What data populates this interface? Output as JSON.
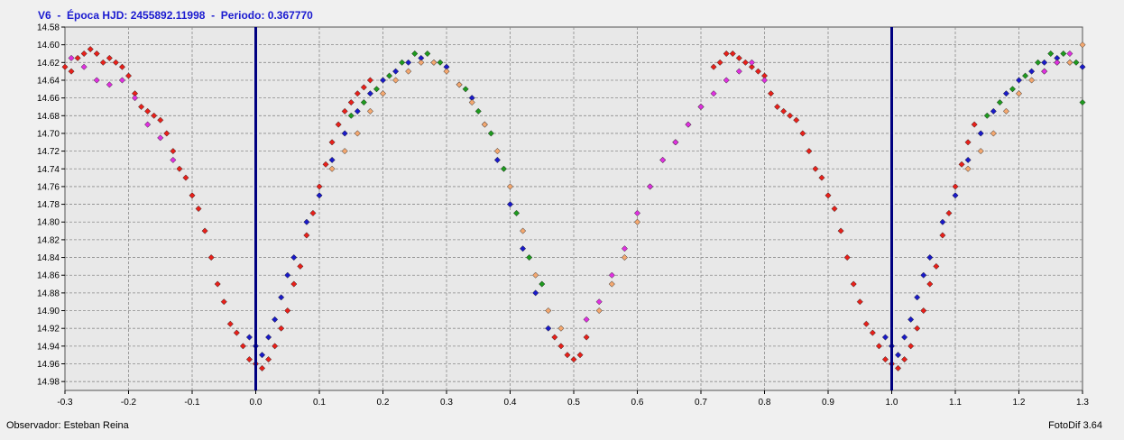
{
  "title": "V6  -  Época HJD: 2455892.11998  -  Periodo: 0.367770",
  "footer": {
    "observer": "Observador: Esteban Reina",
    "software": "FotoDif 3.64"
  },
  "colors": {
    "background": "#f0f0f0",
    "plot_background": "#e8e8e8",
    "grid": "#8a8a8a",
    "title": "#1a1ad0",
    "epoch_line": "#000080"
  },
  "chart_data": {
    "type": "scatter",
    "title": "V6  -  Época HJD: 2455892.11998  -  Periodo: 0.367770",
    "xlabel": "",
    "ylabel": "",
    "xlim": [
      -0.3,
      1.3
    ],
    "ylim": [
      14.99,
      14.58
    ],
    "y_inverted": true,
    "grid": true,
    "legend": "none",
    "x_ticks": [
      "-0.3",
      "-0.2",
      "-0.1",
      "0.0",
      "0.1",
      "0.2",
      "0.3",
      "0.4",
      "0.5",
      "0.6",
      "0.7",
      "0.8",
      "0.9",
      "1.0",
      "1.1",
      "1.2",
      "1.3"
    ],
    "y_ticks": [
      "14.58",
      "14.60",
      "14.62",
      "14.64",
      "14.66",
      "14.68",
      "14.70",
      "14.72",
      "14.74",
      "14.76",
      "14.78",
      "14.80",
      "14.82",
      "14.84",
      "14.86",
      "14.88",
      "14.90",
      "14.92",
      "14.94",
      "14.96",
      "14.98"
    ],
    "vlines": [
      0.0,
      1.0
    ],
    "series": [
      {
        "color": "#e8201a",
        "points": [
          [
            -0.3,
            14.625
          ],
          [
            -0.29,
            14.63
          ],
          [
            -0.28,
            14.615
          ],
          [
            -0.27,
            14.61
          ],
          [
            -0.26,
            14.605
          ],
          [
            -0.25,
            14.61
          ],
          [
            -0.24,
            14.62
          ],
          [
            -0.23,
            14.615
          ],
          [
            -0.22,
            14.62
          ],
          [
            -0.21,
            14.625
          ],
          [
            -0.2,
            14.635
          ],
          [
            -0.19,
            14.655
          ],
          [
            -0.18,
            14.67
          ],
          [
            -0.17,
            14.675
          ],
          [
            -0.16,
            14.68
          ],
          [
            -0.15,
            14.685
          ],
          [
            -0.14,
            14.7
          ],
          [
            -0.13,
            14.72
          ],
          [
            -0.12,
            14.74
          ],
          [
            -0.11,
            14.75
          ],
          [
            -0.1,
            14.77
          ],
          [
            -0.09,
            14.785
          ],
          [
            -0.08,
            14.81
          ],
          [
            -0.07,
            14.84
          ],
          [
            -0.06,
            14.87
          ],
          [
            -0.05,
            14.89
          ],
          [
            -0.04,
            14.915
          ],
          [
            -0.03,
            14.925
          ],
          [
            -0.02,
            14.94
          ],
          [
            -0.01,
            14.955
          ],
          [
            0.0,
            14.96
          ],
          [
            0.01,
            14.965
          ],
          [
            0.02,
            14.955
          ],
          [
            0.03,
            14.94
          ],
          [
            0.04,
            14.92
          ],
          [
            0.05,
            14.9
          ],
          [
            0.06,
            14.87
          ],
          [
            0.07,
            14.85
          ],
          [
            0.08,
            14.815
          ],
          [
            0.09,
            14.79
          ],
          [
            0.1,
            14.76
          ],
          [
            0.11,
            14.735
          ],
          [
            0.12,
            14.71
          ],
          [
            0.13,
            14.69
          ],
          [
            0.14,
            14.675
          ],
          [
            0.15,
            14.665
          ],
          [
            0.16,
            14.655
          ],
          [
            0.17,
            14.648
          ],
          [
            0.18,
            14.64
          ],
          [
            0.72,
            14.625
          ],
          [
            0.73,
            14.62
          ],
          [
            0.74,
            14.61
          ],
          [
            0.75,
            14.61
          ],
          [
            0.76,
            14.615
          ],
          [
            0.77,
            14.62
          ],
          [
            0.78,
            14.625
          ],
          [
            0.79,
            14.63
          ],
          [
            0.8,
            14.635
          ],
          [
            0.81,
            14.655
          ],
          [
            0.82,
            14.67
          ],
          [
            0.83,
            14.675
          ],
          [
            0.84,
            14.68
          ],
          [
            0.85,
            14.685
          ],
          [
            0.86,
            14.7
          ],
          [
            0.87,
            14.72
          ],
          [
            0.88,
            14.74
          ],
          [
            0.89,
            14.75
          ],
          [
            0.9,
            14.77
          ],
          [
            0.91,
            14.785
          ],
          [
            0.92,
            14.81
          ],
          [
            0.93,
            14.84
          ],
          [
            0.94,
            14.87
          ],
          [
            0.95,
            14.89
          ],
          [
            0.96,
            14.915
          ],
          [
            0.97,
            14.925
          ],
          [
            0.98,
            14.94
          ],
          [
            0.99,
            14.955
          ],
          [
            1.0,
            14.96
          ],
          [
            1.01,
            14.965
          ],
          [
            1.02,
            14.955
          ],
          [
            1.03,
            14.94
          ],
          [
            1.04,
            14.92
          ],
          [
            1.05,
            14.9
          ],
          [
            1.06,
            14.87
          ],
          [
            1.07,
            14.85
          ],
          [
            1.08,
            14.815
          ],
          [
            1.09,
            14.79
          ],
          [
            1.1,
            14.76
          ],
          [
            1.11,
            14.735
          ],
          [
            1.12,
            14.71
          ],
          [
            1.13,
            14.69
          ],
          [
            0.47,
            14.93
          ],
          [
            0.48,
            14.94
          ],
          [
            0.49,
            14.95
          ],
          [
            0.5,
            14.955
          ],
          [
            0.51,
            14.95
          ],
          [
            0.52,
            14.93
          ]
        ]
      },
      {
        "color": "#1a1ac8",
        "points": [
          [
            -0.01,
            14.93
          ],
          [
            0.0,
            14.94
          ],
          [
            0.01,
            14.95
          ],
          [
            0.02,
            14.93
          ],
          [
            0.03,
            14.91
          ],
          [
            0.04,
            14.885
          ],
          [
            0.05,
            14.86
          ],
          [
            0.06,
            14.84
          ],
          [
            0.08,
            14.8
          ],
          [
            0.1,
            14.77
          ],
          [
            0.12,
            14.73
          ],
          [
            0.14,
            14.7
          ],
          [
            0.16,
            14.675
          ],
          [
            0.18,
            14.655
          ],
          [
            0.2,
            14.64
          ],
          [
            0.22,
            14.63
          ],
          [
            0.24,
            14.62
          ],
          [
            0.26,
            14.615
          ],
          [
            0.28,
            14.62
          ],
          [
            0.3,
            14.625
          ],
          [
            0.32,
            14.645
          ],
          [
            0.34,
            14.66
          ],
          [
            0.36,
            14.69
          ],
          [
            0.38,
            14.73
          ],
          [
            0.4,
            14.78
          ],
          [
            0.42,
            14.83
          ],
          [
            0.44,
            14.88
          ],
          [
            0.46,
            14.92
          ],
          [
            0.99,
            14.93
          ],
          [
            1.0,
            14.94
          ],
          [
            1.01,
            14.95
          ],
          [
            1.02,
            14.93
          ],
          [
            1.03,
            14.91
          ],
          [
            1.04,
            14.885
          ],
          [
            1.05,
            14.86
          ],
          [
            1.06,
            14.84
          ],
          [
            1.08,
            14.8
          ],
          [
            1.1,
            14.77
          ],
          [
            1.12,
            14.73
          ],
          [
            1.14,
            14.7
          ],
          [
            1.16,
            14.675
          ],
          [
            1.18,
            14.655
          ],
          [
            1.2,
            14.64
          ],
          [
            1.22,
            14.63
          ],
          [
            1.24,
            14.62
          ],
          [
            1.26,
            14.615
          ],
          [
            1.28,
            14.62
          ],
          [
            1.3,
            14.625
          ]
        ]
      },
      {
        "color": "#1e9a1e",
        "points": [
          [
            0.15,
            14.68
          ],
          [
            0.17,
            14.665
          ],
          [
            0.19,
            14.65
          ],
          [
            0.21,
            14.635
          ],
          [
            0.23,
            14.62
          ],
          [
            0.25,
            14.61
          ],
          [
            0.27,
            14.61
          ],
          [
            0.29,
            14.62
          ],
          [
            0.33,
            14.65
          ],
          [
            0.35,
            14.675
          ],
          [
            0.37,
            14.7
          ],
          [
            0.39,
            14.74
          ],
          [
            0.41,
            14.79
          ],
          [
            0.43,
            14.84
          ],
          [
            0.45,
            14.87
          ],
          [
            1.15,
            14.68
          ],
          [
            1.17,
            14.665
          ],
          [
            1.19,
            14.65
          ],
          [
            1.21,
            14.635
          ],
          [
            1.23,
            14.62
          ],
          [
            1.25,
            14.61
          ],
          [
            1.27,
            14.61
          ],
          [
            1.29,
            14.62
          ],
          [
            1.3,
            14.665
          ]
        ]
      },
      {
        "color": "#f4a870",
        "points": [
          [
            0.12,
            14.74
          ],
          [
            0.14,
            14.72
          ],
          [
            0.16,
            14.7
          ],
          [
            0.18,
            14.675
          ],
          [
            0.2,
            14.655
          ],
          [
            0.22,
            14.64
          ],
          [
            0.24,
            14.63
          ],
          [
            0.26,
            14.62
          ],
          [
            0.28,
            14.62
          ],
          [
            0.3,
            14.63
          ],
          [
            0.32,
            14.645
          ],
          [
            0.34,
            14.665
          ],
          [
            0.36,
            14.69
          ],
          [
            0.38,
            14.72
          ],
          [
            0.4,
            14.76
          ],
          [
            0.42,
            14.81
          ],
          [
            0.44,
            14.86
          ],
          [
            0.46,
            14.9
          ],
          [
            0.48,
            14.92
          ],
          [
            0.54,
            14.9
          ],
          [
            0.56,
            14.87
          ],
          [
            0.58,
            14.84
          ],
          [
            0.6,
            14.8
          ],
          [
            0.62,
            14.76
          ],
          [
            0.64,
            14.73
          ],
          [
            0.66,
            14.71
          ],
          [
            0.68,
            14.69
          ],
          [
            0.7,
            14.67
          ],
          [
            1.12,
            14.74
          ],
          [
            1.14,
            14.72
          ],
          [
            1.16,
            14.7
          ],
          [
            1.18,
            14.675
          ],
          [
            1.2,
            14.655
          ],
          [
            1.22,
            14.64
          ],
          [
            1.24,
            14.63
          ],
          [
            1.26,
            14.62
          ],
          [
            1.28,
            14.62
          ],
          [
            1.3,
            14.6
          ]
        ]
      },
      {
        "color": "#e030e0",
        "points": [
          [
            -0.29,
            14.615
          ],
          [
            -0.27,
            14.625
          ],
          [
            -0.25,
            14.64
          ],
          [
            -0.23,
            14.645
          ],
          [
            -0.21,
            14.64
          ],
          [
            -0.19,
            14.66
          ],
          [
            -0.17,
            14.69
          ],
          [
            -0.15,
            14.705
          ],
          [
            -0.13,
            14.73
          ],
          [
            0.52,
            14.91
          ],
          [
            0.54,
            14.89
          ],
          [
            0.56,
            14.86
          ],
          [
            0.58,
            14.83
          ],
          [
            0.6,
            14.79
          ],
          [
            0.62,
            14.76
          ],
          [
            0.64,
            14.73
          ],
          [
            0.66,
            14.71
          ],
          [
            0.68,
            14.69
          ],
          [
            0.7,
            14.67
          ],
          [
            0.72,
            14.655
          ],
          [
            0.74,
            14.64
          ],
          [
            0.76,
            14.63
          ],
          [
            0.78,
            14.62
          ],
          [
            0.8,
            14.64
          ],
          [
            1.24,
            14.63
          ],
          [
            1.26,
            14.62
          ],
          [
            1.28,
            14.61
          ]
        ]
      }
    ]
  }
}
